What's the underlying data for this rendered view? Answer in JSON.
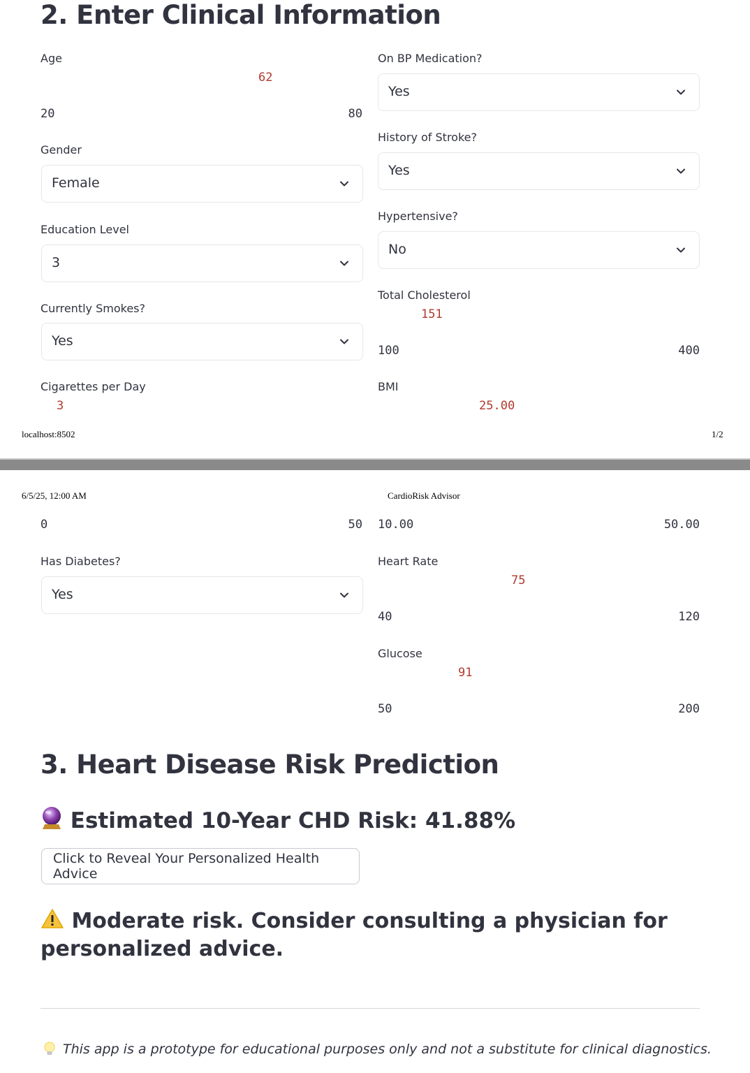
{
  "print": {
    "url": "localhost:8502",
    "page_num": "1/2",
    "datetime": "6/5/25, 12:00 AM",
    "app_title": "CardioRisk Advisor"
  },
  "section2": {
    "title": "2. Enter Clinical Information",
    "age": {
      "label": "Age",
      "value": "62",
      "min": "20",
      "max": "80"
    },
    "gender": {
      "label": "Gender",
      "value": "Female"
    },
    "education": {
      "label": "Education Level",
      "value": "3"
    },
    "smokes": {
      "label": "Currently Smokes?",
      "value": "Yes"
    },
    "cigs": {
      "label": "Cigarettes per Day",
      "value": "3",
      "min": "0",
      "max": "50"
    },
    "diabetes": {
      "label": "Has Diabetes?",
      "value": "Yes"
    },
    "bp_med": {
      "label": "On BP Medication?",
      "value": "Yes"
    },
    "stroke": {
      "label": "History of Stroke?",
      "value": "Yes"
    },
    "hypertensive": {
      "label": "Hypertensive?",
      "value": "No"
    },
    "chol": {
      "label": "Total Cholesterol",
      "value": "151",
      "min": "100",
      "max": "400"
    },
    "bmi": {
      "label": "BMI",
      "value": "25.00",
      "min": "10.00",
      "max": "50.00"
    },
    "hr": {
      "label": "Heart Rate",
      "value": "75",
      "min": "40",
      "max": "120"
    },
    "glucose": {
      "label": "Glucose",
      "value": "91",
      "min": "50",
      "max": "200"
    }
  },
  "section3": {
    "title": "3. Heart Disease Risk Prediction",
    "risk_text": "Estimated 10-Year CHD Risk: 41.88%",
    "reveal_button": "Click to Reveal Your Personalized Health Advice",
    "warning_text": "Moderate risk. Consider consulting a physician for personalized advice.",
    "disclaimer": "This app is a prototype for educational purposes only and not a substitute for clinical diagnostics."
  },
  "icons": {
    "risk": "crystal-ball-icon",
    "warning": "warning-icon",
    "disclaimer": "light-bulb-icon",
    "dropdown": "chevron-down-icon"
  },
  "colors": {
    "slider_value": "#b03a2e",
    "text": "#31333f"
  }
}
